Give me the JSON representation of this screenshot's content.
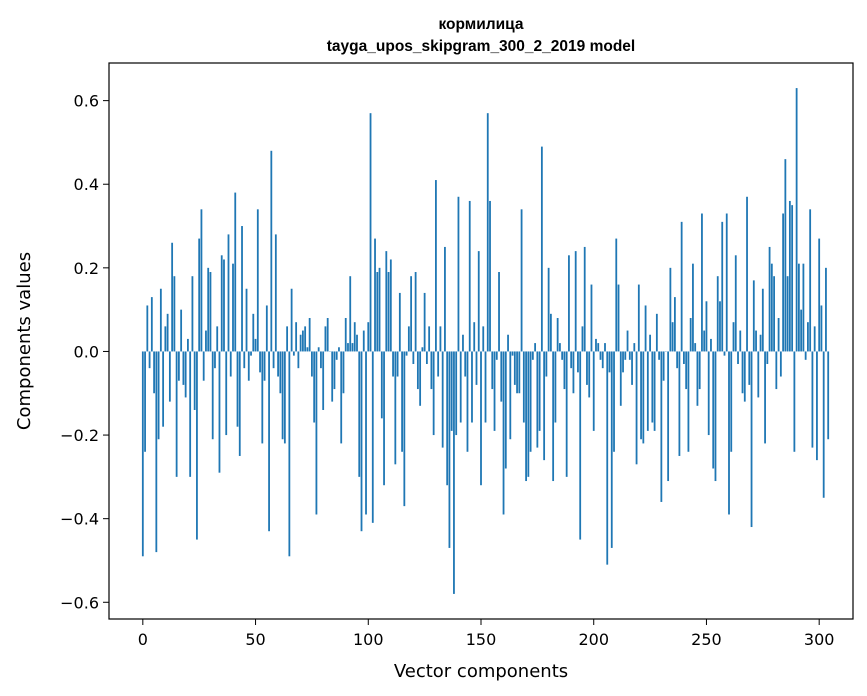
{
  "chart_data": {
    "type": "bar",
    "title_line1": "кормилица",
    "title_line2": "tayga_upos_skipgram_300_2_2019 model",
    "xlabel": "Vector components",
    "ylabel": "Components values",
    "xlim": [
      -15,
      315
    ],
    "ylim": [
      -0.64,
      0.69
    ],
    "xticks": [
      0,
      50,
      100,
      150,
      200,
      250,
      300
    ],
    "yticks": [
      -0.6,
      -0.4,
      -0.2,
      0.0,
      0.2,
      0.4,
      0.6
    ],
    "ytick_labels": [
      "−0.6",
      "−0.4",
      "−0.2",
      "0.0",
      "0.2",
      "0.4",
      "0.6"
    ],
    "bar_color": "#1f77b4",
    "grid": false,
    "values": [
      -0.49,
      -0.24,
      0.11,
      -0.04,
      0.13,
      -0.1,
      -0.48,
      -0.21,
      0.15,
      -0.18,
      0.06,
      0.09,
      -0.12,
      0.26,
      0.18,
      -0.3,
      -0.07,
      0.1,
      -0.08,
      -0.11,
      0.03,
      -0.3,
      0.18,
      -0.14,
      -0.45,
      0.27,
      0.34,
      -0.07,
      0.05,
      0.2,
      0.19,
      -0.21,
      -0.04,
      0.06,
      -0.29,
      0.23,
      0.22,
      -0.2,
      0.28,
      -0.06,
      0.21,
      0.38,
      -0.18,
      -0.25,
      0.3,
      -0.04,
      0.15,
      -0.07,
      -0.01,
      0.09,
      0.03,
      0.34,
      -0.05,
      -0.22,
      -0.07,
      0.11,
      -0.43,
      0.48,
      -0.04,
      0.28,
      -0.06,
      -0.1,
      -0.21,
      -0.22,
      0.06,
      -0.49,
      0.15,
      -0.01,
      0.07,
      -0.04,
      0.04,
      0.05,
      0.06,
      0.01,
      0.08,
      -0.06,
      -0.17,
      -0.39,
      0.01,
      -0.04,
      -0.14,
      0.06,
      0.08,
      0.0,
      -0.12,
      -0.09,
      -0.02,
      0.01,
      -0.22,
      -0.1,
      0.08,
      0.02,
      0.18,
      0.02,
      0.07,
      0.04,
      -0.3,
      -0.43,
      0.05,
      -0.39,
      0.07,
      0.57,
      -0.41,
      0.27,
      0.19,
      0.2,
      -0.16,
      -0.32,
      0.24,
      0.19,
      0.22,
      -0.06,
      -0.27,
      -0.06,
      0.14,
      -0.24,
      -0.37,
      -0.01,
      0.06,
      0.18,
      -0.03,
      0.19,
      -0.09,
      -0.13,
      0.01,
      0.14,
      -0.03,
      0.06,
      -0.09,
      -0.2,
      0.41,
      -0.06,
      0.06,
      -0.23,
      0.25,
      -0.32,
      -0.47,
      -0.19,
      -0.58,
      -0.2,
      0.37,
      -0.17,
      0.04,
      -0.06,
      -0.24,
      0.36,
      -0.17,
      0.07,
      -0.08,
      0.24,
      -0.32,
      0.06,
      -0.17,
      0.57,
      0.36,
      -0.09,
      -0.19,
      -0.02,
      0.19,
      -0.12,
      -0.39,
      -0.28,
      0.04,
      -0.21,
      -0.01,
      -0.08,
      -0.1,
      -0.1,
      0.34,
      -0.17,
      -0.31,
      -0.3,
      -0.24,
      -0.02,
      0.02,
      -0.23,
      -0.19,
      0.49,
      -0.26,
      -0.06,
      0.2,
      0.09,
      -0.31,
      -0.17,
      0.08,
      0.02,
      -0.02,
      -0.09,
      -0.3,
      0.23,
      -0.04,
      -0.1,
      0.24,
      -0.05,
      -0.45,
      0.06,
      0.25,
      -0.08,
      -0.11,
      0.16,
      -0.19,
      0.03,
      0.02,
      -0.02,
      -0.04,
      0.02,
      -0.51,
      -0.05,
      -0.47,
      -0.24,
      0.27,
      0.16,
      -0.13,
      -0.05,
      -0.02,
      0.05,
      -0.02,
      -0.08,
      0.02,
      -0.27,
      0.16,
      -0.21,
      -0.22,
      0.11,
      -0.19,
      0.04,
      -0.17,
      -0.19,
      0.09,
      -0.02,
      -0.36,
      -0.07,
      0.0,
      -0.31,
      0.2,
      0.07,
      0.13,
      -0.04,
      -0.25,
      0.31,
      -0.03,
      -0.09,
      -0.24,
      0.08,
      0.21,
      0.02,
      -0.13,
      -0.09,
      0.33,
      0.05,
      0.12,
      -0.2,
      0.03,
      -0.28,
      -0.31,
      0.18,
      0.12,
      0.31,
      -0.01,
      0.33,
      -0.39,
      -0.24,
      0.07,
      0.23,
      -0.03,
      0.05,
      -0.1,
      -0.12,
      0.37,
      -0.08,
      -0.42,
      0.17,
      0.05,
      -0.11,
      0.04,
      0.15,
      -0.22,
      -0.03,
      0.25,
      0.21,
      0.18,
      -0.09,
      0.08,
      -0.06,
      0.33,
      0.46,
      0.18,
      0.36,
      0.35,
      -0.24,
      0.63,
      0.21,
      0.1,
      0.21,
      -0.02,
      0.07,
      0.34,
      -0.23,
      0.06,
      -0.26,
      0.27,
      0.11,
      -0.35,
      0.2,
      -0.21
    ]
  }
}
